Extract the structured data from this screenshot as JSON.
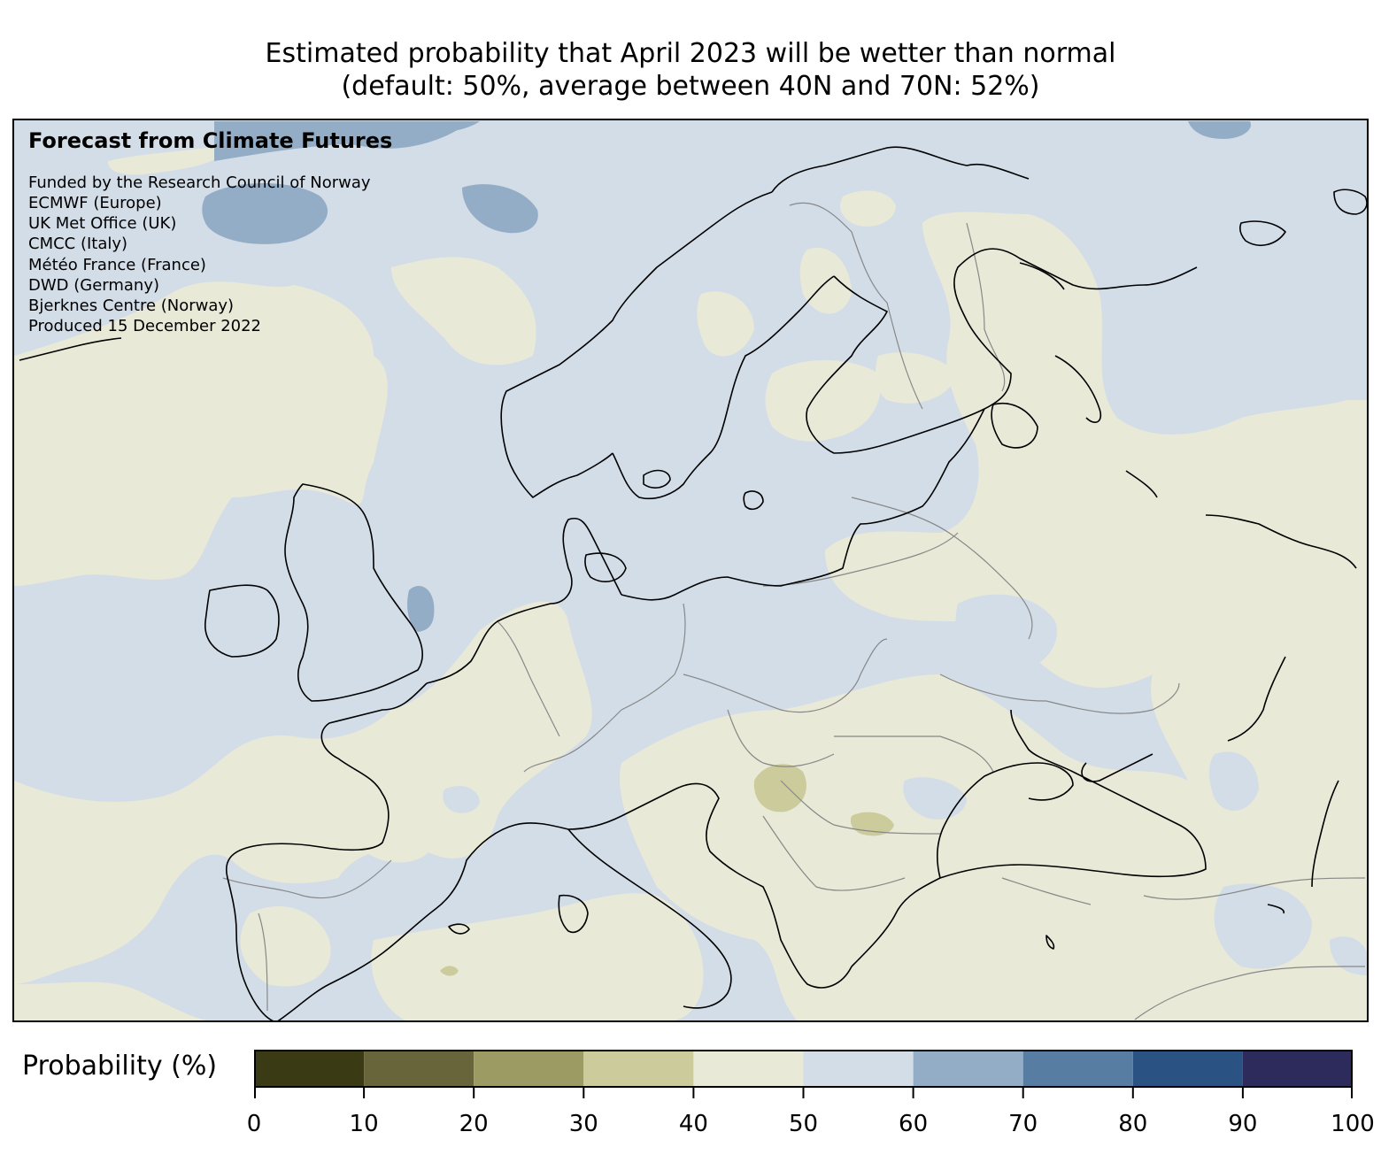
{
  "title": {
    "line1": "Estimated probability that April 2023 will be wetter than normal",
    "line2": "(default: 50%, average between 40N and 70N: 52%)"
  },
  "credits": {
    "heading": "Forecast from Climate Futures",
    "lines": [
      "Funded by the Research Council of Norway",
      "ECMWF (Europe)",
      "UK Met Office (UK)",
      "CMCC (Italy)",
      "Météo France (France)",
      "DWD (Germany)",
      "Bjerknes Centre (Norway)",
      "Produced 15 December 2022"
    ]
  },
  "colorbar": {
    "label": "Probability (%)",
    "ticks": [
      "0",
      "10",
      "20",
      "30",
      "40",
      "50",
      "60",
      "70",
      "80",
      "90",
      "100"
    ],
    "bins": [
      {
        "range": [
          0,
          10
        ],
        "color": "#3a3a14"
      },
      {
        "range": [
          10,
          20
        ],
        "color": "#676539"
      },
      {
        "range": [
          20,
          30
        ],
        "color": "#9d9b64"
      },
      {
        "range": [
          30,
          40
        ],
        "color": "#cccb9b"
      },
      {
        "range": [
          40,
          50
        ],
        "color": "#e9e9d8"
      },
      {
        "range": [
          50,
          60
        ],
        "color": "#d3dde8"
      },
      {
        "range": [
          60,
          70
        ],
        "color": "#94adc6"
      },
      {
        "range": [
          70,
          80
        ],
        "color": "#577da3"
      },
      {
        "range": [
          80,
          90
        ],
        "color": "#2a5282"
      },
      {
        "range": [
          90,
          100
        ],
        "color": "#2d2b5c"
      }
    ]
  },
  "map": {
    "region": "Europe",
    "colors": {
      "background_50_60": "#d3dde8",
      "band_40_50": "#e9e9d8",
      "band_30_40": "#cccb9b",
      "band_60_70": "#94adc6",
      "coastline": "#000000",
      "borders": "#888888"
    }
  }
}
